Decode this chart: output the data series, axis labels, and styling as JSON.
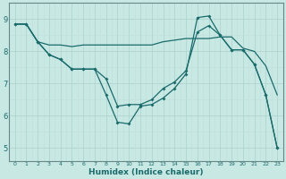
{
  "xlabel": "Humidex (Indice chaleur)",
  "background_color": "#c8e8e4",
  "grid_color_major": "#b0d4d0",
  "grid_color_minor": "#c0deda",
  "line_color": "#1a6b6b",
  "xlim": [
    -0.5,
    23.5
  ],
  "ylim": [
    4.6,
    9.5
  ],
  "xticks": [
    0,
    1,
    2,
    3,
    4,
    5,
    6,
    7,
    8,
    9,
    10,
    11,
    12,
    13,
    14,
    15,
    16,
    17,
    18,
    19,
    20,
    21,
    22,
    23
  ],
  "yticks": [
    5,
    6,
    7,
    8,
    9
  ],
  "line1_x": [
    0,
    1,
    2,
    3,
    4,
    5,
    6,
    7,
    8,
    9,
    10,
    11,
    12,
    13,
    14,
    15,
    16,
    17,
    18,
    19,
    20,
    21,
    22,
    23
  ],
  "line1_y": [
    8.85,
    8.85,
    8.3,
    7.9,
    7.75,
    7.45,
    7.45,
    7.45,
    6.65,
    5.8,
    5.75,
    6.3,
    6.35,
    6.55,
    6.85,
    7.3,
    9.05,
    9.1,
    8.5,
    8.05,
    8.05,
    7.6,
    6.65,
    5.0
  ],
  "line2_x": [
    0,
    1,
    2,
    3,
    4,
    5,
    6,
    7,
    8,
    9,
    10,
    11,
    12,
    13,
    14,
    15,
    16,
    17,
    18,
    19,
    20,
    21,
    22,
    23
  ],
  "line2_y": [
    8.85,
    8.85,
    8.3,
    8.2,
    8.2,
    8.15,
    8.2,
    8.2,
    8.2,
    8.2,
    8.2,
    8.2,
    8.2,
    8.3,
    8.35,
    8.4,
    8.4,
    8.4,
    8.45,
    8.45,
    8.1,
    8.0,
    7.55,
    6.65
  ],
  "line3_x": [
    0,
    1,
    2,
    3,
    4,
    5,
    6,
    7,
    8,
    9,
    10,
    11,
    12,
    13,
    14,
    15,
    16,
    17,
    18,
    19,
    20,
    21,
    22,
    23
  ],
  "line3_y": [
    8.85,
    8.85,
    8.3,
    7.9,
    7.75,
    7.45,
    7.45,
    7.45,
    7.15,
    6.3,
    6.35,
    6.35,
    6.5,
    6.85,
    7.05,
    7.4,
    8.6,
    8.8,
    8.5,
    8.05,
    8.05,
    7.6,
    6.65,
    5.0
  ],
  "figsize": [
    3.2,
    2.0
  ],
  "dpi": 100
}
